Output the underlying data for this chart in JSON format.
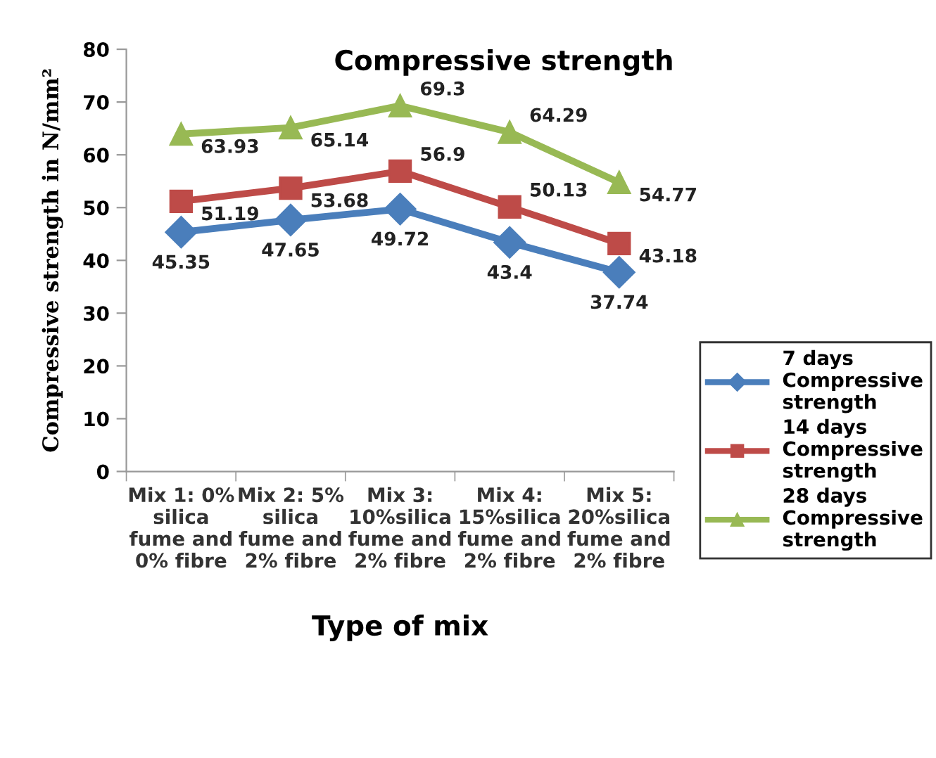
{
  "chart_data": {
    "type": "line",
    "title": "Compressive strength",
    "xlabel": "Type of mix",
    "ylabel": "Compressive strength in N/mm²",
    "categories": [
      "Mix 1: 0% silica fume and 0% fibre",
      "Mix 2: 5% silica fume and 2% fibre",
      "Mix 3: 10%silica fume and 2% fibre",
      "Mix 4: 15%silica fume and 2% fibre",
      "Mix 5: 20%silica fume and 2% fibre"
    ],
    "series": [
      {
        "name": "7 days Compressive strength",
        "color": "#4a7ebb",
        "marker": "diamond",
        "values": [
          45.35,
          47.65,
          49.72,
          43.4,
          37.74
        ]
      },
      {
        "name": "14 days Compressive strength",
        "color": "#be4b48",
        "marker": "square",
        "values": [
          51.19,
          53.68,
          56.9,
          50.13,
          43.18
        ]
      },
      {
        "name": "28 days Compressive strength",
        "color": "#98b954",
        "marker": "triangle",
        "values": [
          63.93,
          65.14,
          69.3,
          64.29,
          54.77
        ]
      }
    ],
    "ylim": [
      0,
      80
    ],
    "yticks": [
      0,
      10,
      20,
      30,
      40,
      50,
      60,
      70,
      80
    ],
    "grid": false,
    "legend": "right",
    "data_labels": true,
    "line_style": "solid"
  }
}
